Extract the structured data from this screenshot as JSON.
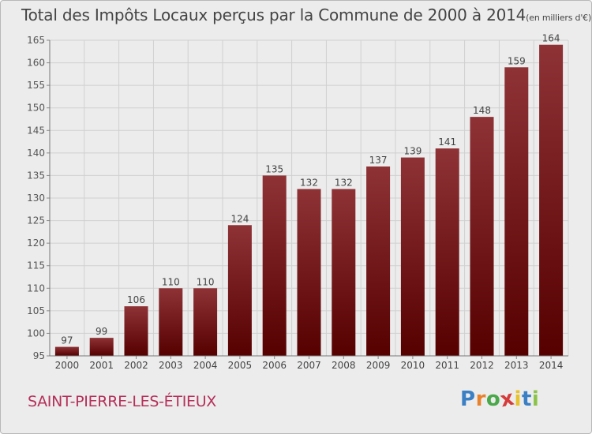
{
  "chart_data": {
    "type": "bar",
    "title": "Total des Impôts Locaux perçus par la Commune de 2000 à 2014",
    "unit": "(en milliers d'€)",
    "categories": [
      "2000",
      "2001",
      "2002",
      "2003",
      "2004",
      "2005",
      "2006",
      "2007",
      "2008",
      "2009",
      "2010",
      "2011",
      "2012",
      "2013",
      "2014"
    ],
    "values": [
      97,
      99,
      106,
      110,
      110,
      124,
      135,
      132,
      132,
      137,
      139,
      141,
      148,
      159,
      164
    ],
    "ylim": [
      95,
      165
    ],
    "yticks": [
      95,
      100,
      105,
      110,
      115,
      120,
      125,
      130,
      135,
      140,
      145,
      150,
      155,
      160,
      165
    ],
    "xlabel": "",
    "ylabel": "",
    "grid": true,
    "bar_color": "#7a1f24"
  },
  "commune": "SAINT-PIERRE-LES-ÉTIEUX",
  "logo": {
    "letters": [
      "P",
      "r",
      "o",
      "x",
      "i",
      "t",
      "i"
    ],
    "colors": [
      "#3b7fc4",
      "#e8812c",
      "#4aa84a",
      "#d63b3b",
      "#e8c12c",
      "#3b7fc4",
      "#8bc34a"
    ]
  }
}
